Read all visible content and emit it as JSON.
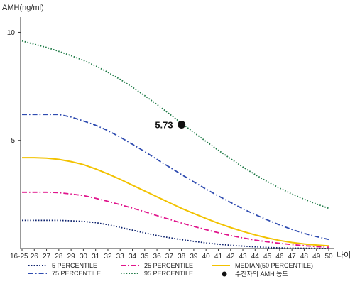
{
  "chart_data": {
    "type": "line",
    "ylabel": "AMH(ng/ml)",
    "xlabel": "나이",
    "ylim": [
      0,
      11
    ],
    "yticks": [
      5,
      10
    ],
    "categories": [
      "16-25",
      "26",
      "27",
      "28",
      "29",
      "30",
      "31",
      "32",
      "33",
      "34",
      "35",
      "36",
      "37",
      "38",
      "39",
      "40",
      "41",
      "42",
      "43",
      "44",
      "45",
      "46",
      "47",
      "48",
      "49",
      "50"
    ],
    "series": [
      {
        "name": "5 PERCENTILE",
        "color": "#0a1f6b",
        "dash": "dot",
        "values": [
          1.3,
          1.3,
          1.3,
          1.3,
          1.28,
          1.25,
          1.2,
          1.1,
          0.98,
          0.85,
          0.72,
          0.6,
          0.5,
          0.41,
          0.33,
          0.26,
          0.2,
          0.15,
          0.11,
          0.08,
          0.05,
          0.03,
          0.02,
          0.01,
          0.01,
          0.0
        ]
      },
      {
        "name": "25 PERCENTILE",
        "color": "#e0158c",
        "dash": "dashdot",
        "values": [
          2.6,
          2.6,
          2.6,
          2.58,
          2.52,
          2.45,
          2.32,
          2.18,
          2.03,
          1.87,
          1.7,
          1.52,
          1.35,
          1.18,
          1.02,
          0.87,
          0.73,
          0.6,
          0.49,
          0.39,
          0.31,
          0.24,
          0.18,
          0.13,
          0.09,
          0.06
        ]
      },
      {
        "name": "MEDIAN(50 PERCENTILE)",
        "color": "#f2c200",
        "dash": "solid",
        "values": [
          4.2,
          4.2,
          4.18,
          4.12,
          4.02,
          3.88,
          3.68,
          3.45,
          3.2,
          2.93,
          2.66,
          2.39,
          2.12,
          1.86,
          1.62,
          1.39,
          1.17,
          0.97,
          0.79,
          0.63,
          0.49,
          0.37,
          0.28,
          0.21,
          0.16,
          0.12
        ]
      },
      {
        "name": "75 PERCENTILE",
        "color": "#2e4bb0",
        "dash": "dashdot",
        "values": [
          6.2,
          6.2,
          6.2,
          6.2,
          6.08,
          5.9,
          5.7,
          5.45,
          5.15,
          4.82,
          4.48,
          4.12,
          3.77,
          3.42,
          3.08,
          2.75,
          2.43,
          2.13,
          1.84,
          1.57,
          1.32,
          1.09,
          0.88,
          0.7,
          0.55,
          0.42
        ]
      },
      {
        "name": "95 PERCENTILE",
        "color": "#1e7a46",
        "dash": "dot",
        "values": [
          9.6,
          9.45,
          9.3,
          9.12,
          8.92,
          8.7,
          8.45,
          8.15,
          7.82,
          7.46,
          7.07,
          6.66,
          6.23,
          5.8,
          5.37,
          4.95,
          4.54,
          4.15,
          3.77,
          3.42,
          3.09,
          2.79,
          2.52,
          2.28,
          2.06,
          1.86
        ]
      }
    ],
    "marker": {
      "label": "5.73",
      "x": "38",
      "y": 5.73,
      "color": "#111111"
    },
    "marker_legend": "수진자의 AMH 농도",
    "legend_position": "bottom",
    "grid": false
  }
}
